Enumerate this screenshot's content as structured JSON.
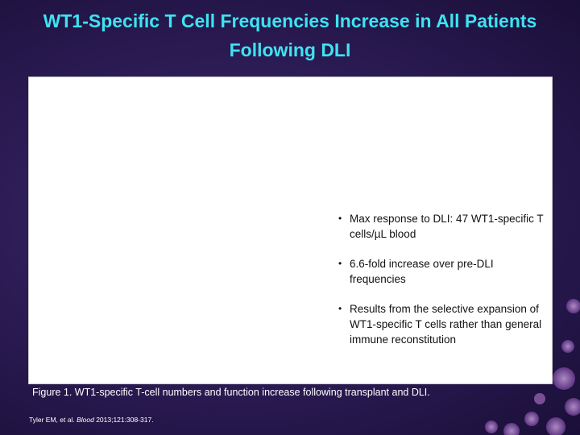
{
  "header": {
    "title": "WT1-Specific T Cell Frequencies Increase in All Patients Following DLI"
  },
  "bullets": [
    "Max response to DLI: 47 WT1-specific T cells/µL blood",
    "6.6-fold increase over pre-DLI frequencies",
    "Results from the selective expansion of WT1-specific T cells rather than general immune reconstitution"
  ],
  "caption": "Figure 1. WT1-specific T-cell numbers and function increase following transplant and DLI.",
  "citation": {
    "authors": "Tyler EM, et al.",
    "journal": "Blood",
    "details": "2013;121:308-317."
  }
}
